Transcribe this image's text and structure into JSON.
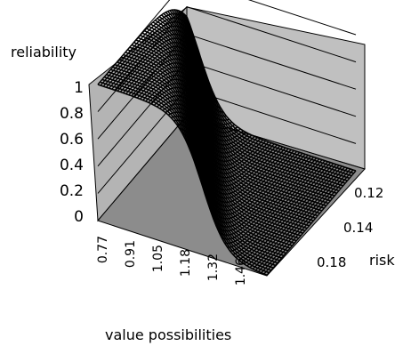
{
  "chart_data": {
    "type": "surface",
    "title": "",
    "zlabel": "reliability",
    "xlabel": "value possibilities",
    "ylabel": "risk",
    "z_ticks": [
      "1",
      "0.8",
      "0.6",
      "0.4",
      "0.2",
      "0"
    ],
    "x_ticks": [
      "0.77",
      "0.91",
      "1.05",
      "1.18",
      "1.32",
      "1.46"
    ],
    "y_ticks": [
      "0.12",
      "0.14",
      "0.18"
    ],
    "zlim": [
      0,
      1
    ],
    "x_range": [
      0.77,
      1.5
    ],
    "y_range": [
      0.11,
      0.19
    ],
    "surface": "sigmoid-like reliability surface: near 1 at low value possibilities, falling to 0 toward high value possibilities; the transition shifts toward lower value as risk increases",
    "colors": {
      "wall_back": "#c0c0c0",
      "wall_side": "#b4b4b4",
      "floor": "#8c8c8c",
      "surface": "#000000",
      "grid": "#000000"
    }
  }
}
